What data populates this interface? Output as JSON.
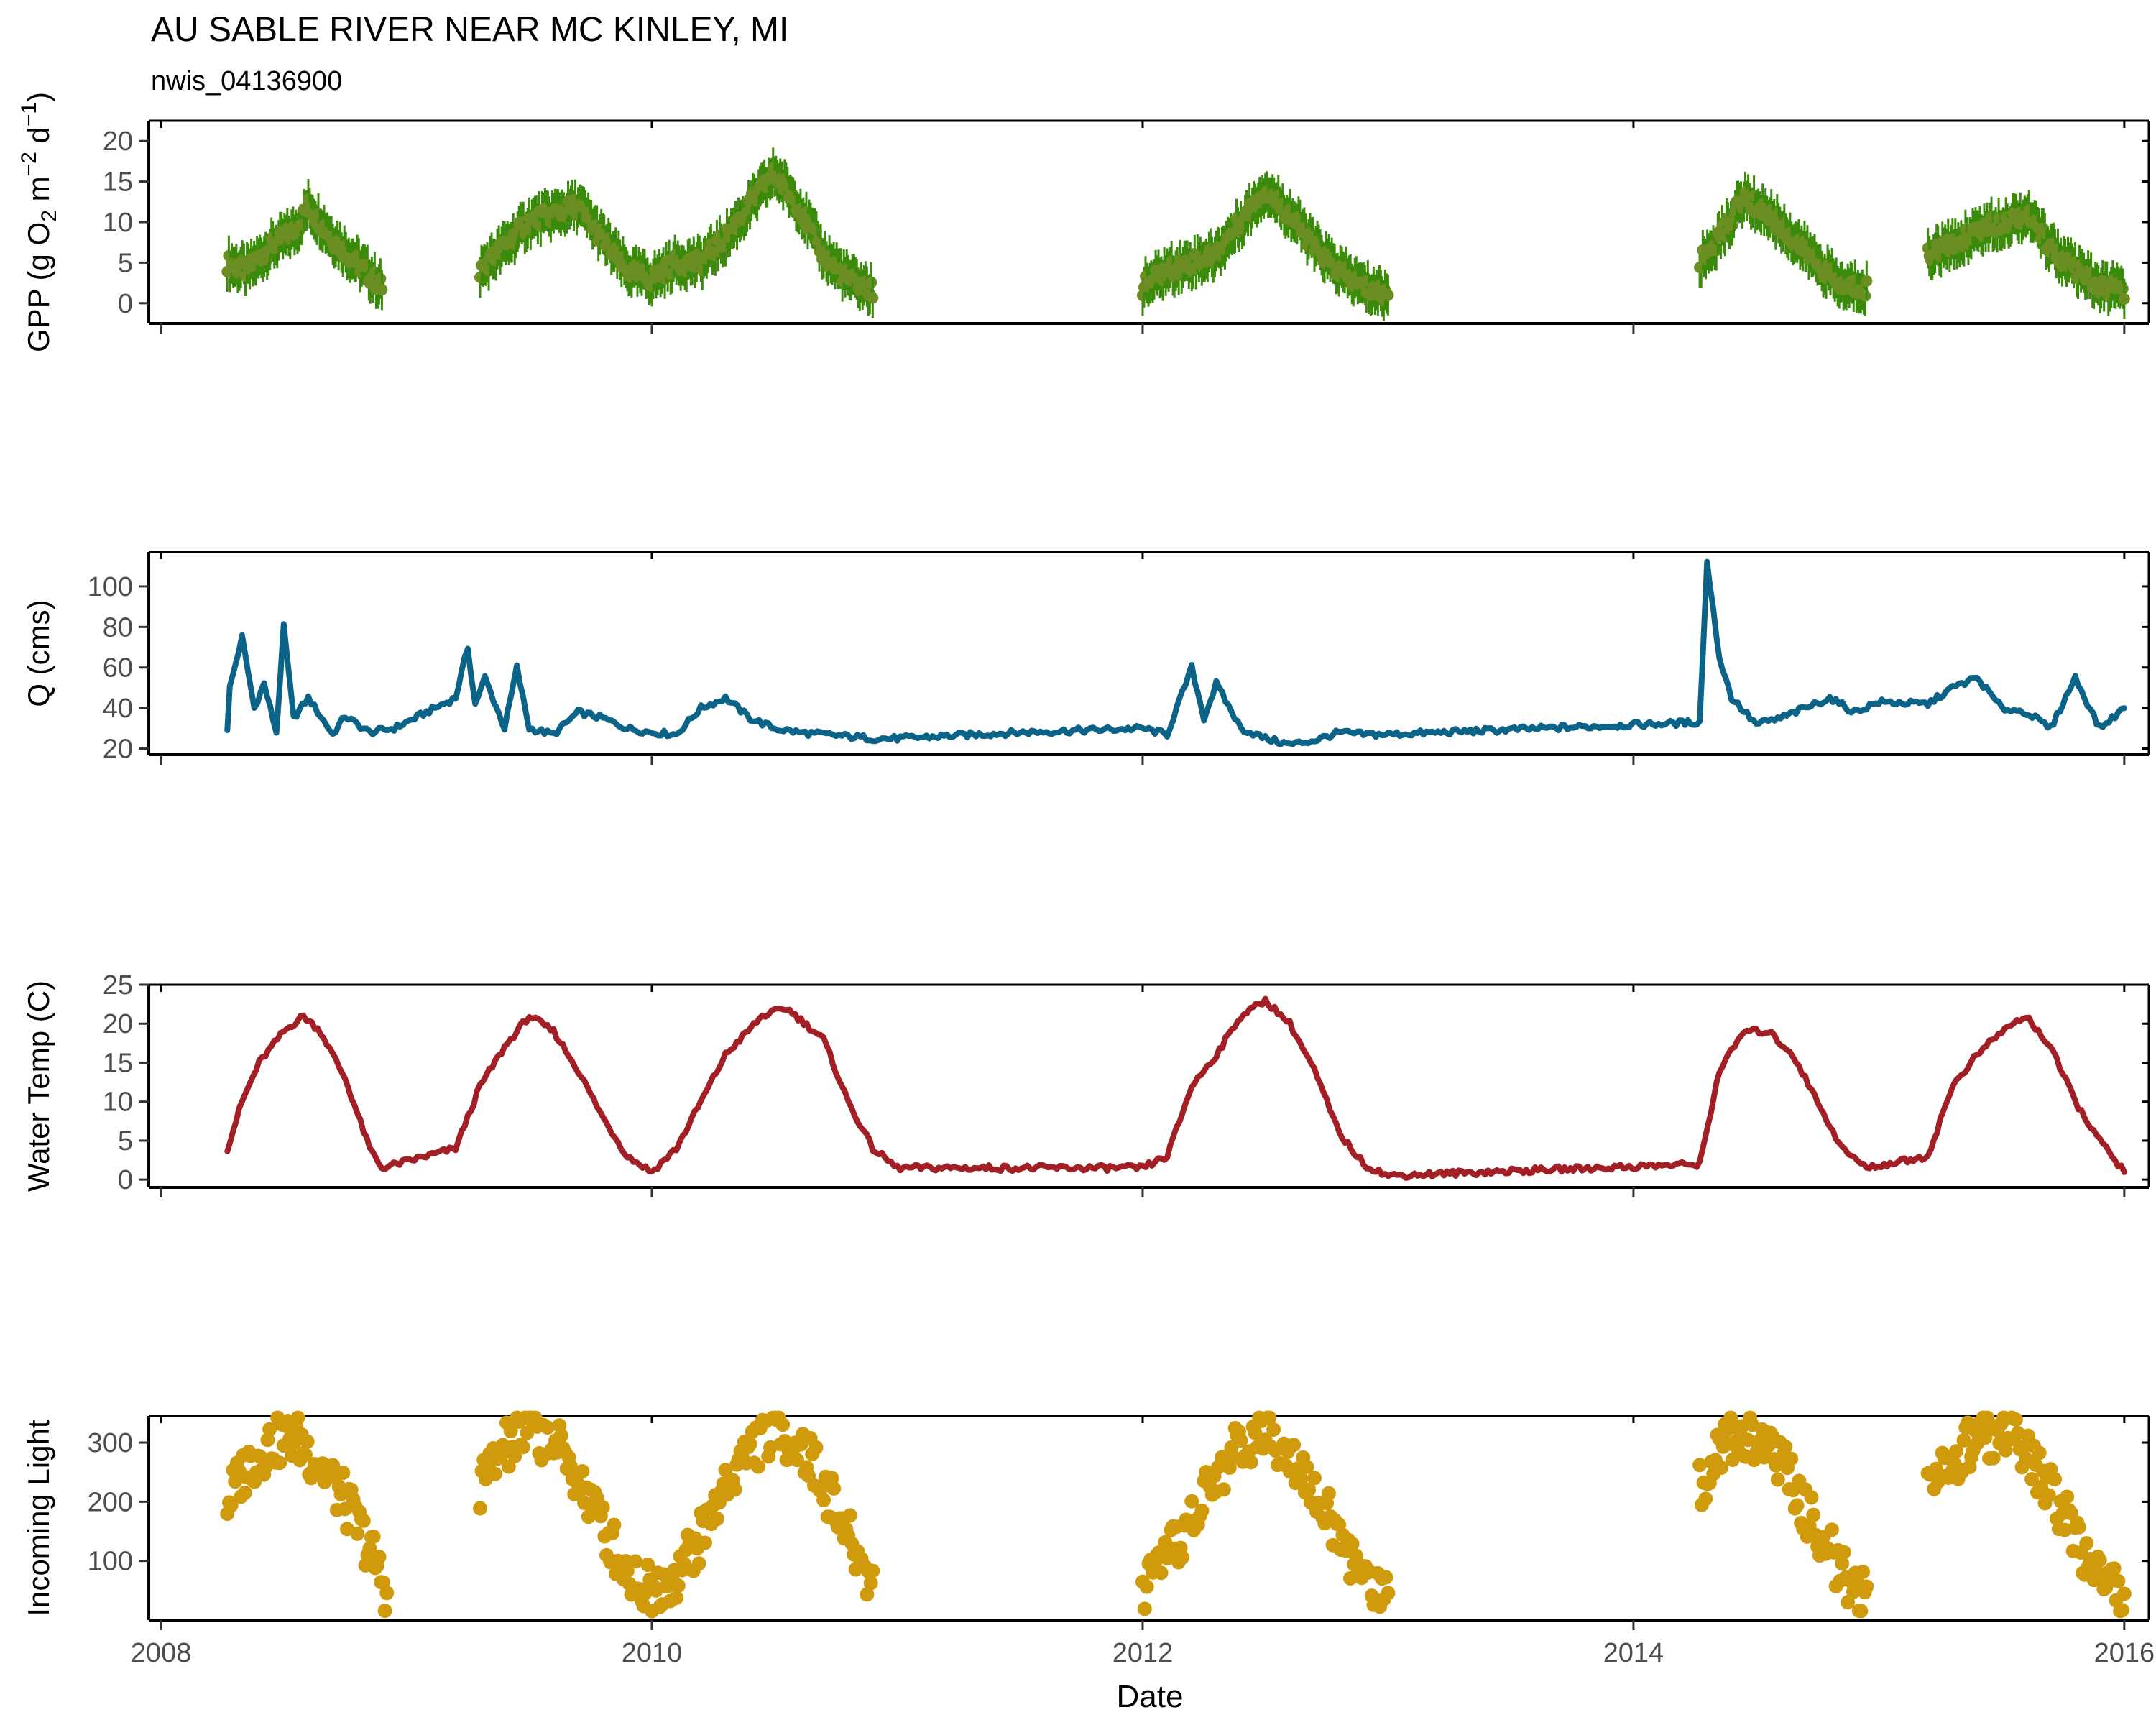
{
  "title": "AU SABLE RIVER NEAR MC KINLEY, MI",
  "subtitle": "nwis_04136900",
  "colors": {
    "gpp": "#6B8E23",
    "gpp_err": "#3B8B0A",
    "q": "#0B6388",
    "temp": "#A21F25",
    "light": "#CF9A0C"
  },
  "chart_data": [
    {
      "type": "scatter",
      "ylabel": "GPP (g  O2 m-2 d-1)",
      "ylabel_parts": {
        "prefix": "GPP (g  O",
        "sub": "2",
        "mid1": " m",
        "sup1": "−2",
        "mid2": " d",
        "sup2": "−1",
        "suffix": ")"
      },
      "xlim": [
        2007.95,
        2016.1
      ],
      "ylim": [
        -2.5,
        22.5
      ],
      "yticks": [
        0,
        5,
        10,
        15,
        20
      ],
      "ytick_labels": [
        "0",
        "5",
        "10",
        "15",
        "20"
      ],
      "grid": false,
      "error_bars": true,
      "segments": [
        {
          "x": [
            2008.27,
            2008.35,
            2008.45,
            2008.55,
            2008.6,
            2008.7,
            2008.8,
            2008.9
          ],
          "y": [
            5,
            4,
            7,
            9,
            12,
            8,
            5,
            2
          ]
        },
        {
          "x": [
            2009.3,
            2009.4,
            2009.5,
            2009.6,
            2009.7,
            2009.8,
            2009.9,
            2010.0,
            2010.1,
            2010.2,
            2010.3,
            2010.4,
            2010.5,
            2010.6,
            2010.7,
            2010.8,
            2010.9
          ],
          "y": [
            4,
            7,
            10,
            11,
            12,
            8,
            4,
            3,
            5,
            5,
            8,
            12,
            16,
            12,
            6,
            3,
            1.5
          ]
        },
        {
          "x": [
            2012.0,
            2012.1,
            2012.2,
            2012.3,
            2012.4,
            2012.5,
            2012.6,
            2012.7,
            2012.8,
            2012.9,
            2013.0
          ],
          "y": [
            2,
            4,
            5,
            6,
            10,
            14,
            11,
            7,
            4,
            2,
            1
          ]
        },
        {
          "x": [
            2014.27,
            2014.35,
            2014.45,
            2014.55,
            2014.65,
            2014.75,
            2014.85,
            2014.95
          ],
          "y": [
            5,
            8,
            13,
            11,
            8,
            5,
            2,
            2
          ]
        },
        {
          "x": [
            2015.2,
            2015.3,
            2015.4,
            2015.5,
            2015.6,
            2015.7,
            2015.8,
            2015.9,
            2016.0
          ],
          "y": [
            6,
            7,
            9,
            10,
            11,
            7,
            4,
            2,
            1.5
          ]
        }
      ]
    },
    {
      "type": "line",
      "ylabel": "Q (cms)",
      "xlim": [
        2007.95,
        2016.1
      ],
      "ylim": [
        17,
        117
      ],
      "yticks": [
        20,
        40,
        60,
        80,
        100
      ],
      "ytick_labels": [
        "20",
        "40",
        "60",
        "80",
        "100"
      ],
      "grid": false,
      "x": [
        2008.27,
        2008.28,
        2008.33,
        2008.38,
        2008.42,
        2008.47,
        2008.5,
        2008.54,
        2008.6,
        2008.7,
        2008.75,
        2008.85,
        2008.95,
        2009.2,
        2009.25,
        2009.28,
        2009.32,
        2009.4,
        2009.45,
        2009.5,
        2009.6,
        2009.7,
        2009.8,
        2009.9,
        2010.0,
        2010.1,
        2010.2,
        2010.3,
        2010.4,
        2010.5,
        2010.6,
        2010.7,
        2010.8,
        2010.9,
        2011.0,
        2011.5,
        2012.0,
        2012.1,
        2012.2,
        2012.25,
        2012.3,
        2012.4,
        2012.5,
        2012.6,
        2012.7,
        2012.8,
        2012.9,
        2013.0,
        2014.27,
        2014.3,
        2014.35,
        2014.4,
        2014.5,
        2014.6,
        2014.7,
        2014.8,
        2014.9,
        2015.0,
        2015.2,
        2015.3,
        2015.4,
        2015.5,
        2015.6,
        2015.7,
        2015.8,
        2015.9,
        2016.0
      ],
      "y": [
        30,
        50,
        75,
        40,
        52,
        28,
        80,
        35,
        45,
        27,
        36,
        28,
        30,
        45,
        70,
        42,
        55,
        30,
        60,
        30,
        27,
        38,
        35,
        30,
        28,
        27,
        40,
        45,
        35,
        30,
        28,
        27,
        26,
        25,
        25,
        28,
        30,
        27,
        60,
        35,
        52,
        30,
        25,
        22,
        24,
        28,
        27,
        27,
        33,
        112,
        65,
        45,
        32,
        35,
        40,
        45,
        38,
        43,
        42,
        50,
        55,
        40,
        38,
        30,
        55,
        30,
        40
      ]
    },
    {
      "type": "line",
      "ylabel": "Water Temp (C)",
      "xlim": [
        2007.95,
        2016.1
      ],
      "ylim": [
        -1,
        25
      ],
      "yticks": [
        0,
        5,
        10,
        15,
        20,
        25
      ],
      "ytick_labels": [
        "0",
        "5",
        "10",
        "15",
        "20",
        "25"
      ],
      "grid": false,
      "x": [
        2008.27,
        2008.33,
        2008.4,
        2008.5,
        2008.58,
        2008.65,
        2008.75,
        2008.85,
        2008.9,
        2009.2,
        2009.3,
        2009.4,
        2009.5,
        2009.6,
        2009.7,
        2009.8,
        2009.9,
        2010.0,
        2010.1,
        2010.2,
        2010.3,
        2010.45,
        2010.55,
        2010.7,
        2010.8,
        2010.9,
        2011.0,
        2012.0,
        2012.1,
        2012.2,
        2012.3,
        2012.4,
        2012.5,
        2012.6,
        2012.7,
        2012.8,
        2012.9,
        2013.0,
        2014.27,
        2014.35,
        2014.45,
        2014.55,
        2014.65,
        2014.75,
        2014.85,
        2014.95,
        2015.2,
        2015.3,
        2015.4,
        2015.5,
        2015.6,
        2015.7,
        2015.8,
        2015.9,
        2016.0
      ],
      "y": [
        4,
        10,
        15,
        19,
        21,
        19,
        13,
        4,
        1.5,
        4,
        12,
        17,
        21,
        19,
        14,
        8,
        3,
        1,
        4,
        10,
        16,
        21,
        22,
        18,
        10,
        4,
        1.5,
        1.5,
        3,
        12,
        16,
        21,
        23,
        20,
        14,
        6,
        2,
        0.5,
        2,
        14,
        19,
        19,
        16,
        10,
        4,
        1.5,
        3,
        12,
        16,
        19,
        21,
        17,
        10,
        5,
        1
      ]
    },
    {
      "type": "scatter",
      "ylabel": "Incoming Light",
      "xlabel": "Date",
      "xlim": [
        2007.95,
        2016.1
      ],
      "ylim": [
        0,
        345
      ],
      "yticks": [
        100,
        200,
        300
      ],
      "ytick_labels": [
        "100",
        "200",
        "300"
      ],
      "xticks": [
        2008,
        2010,
        2012,
        2014,
        2016
      ],
      "xtick_labels": [
        "2008",
        "2010",
        "2012",
        "2014",
        "2016"
      ],
      "grid": false,
      "segments": [
        {
          "x": [
            2008.27,
            2008.35,
            2008.45,
            2008.55,
            2008.65,
            2008.75,
            2008.85,
            2008.92
          ],
          "y": [
            200,
            260,
            300,
            310,
            260,
            200,
            120,
            50
          ]
        },
        {
          "x": [
            2009.3,
            2009.4,
            2009.5,
            2009.6,
            2009.7,
            2009.8,
            2009.9,
            2010.0,
            2010.1,
            2010.2,
            2010.3,
            2010.4,
            2010.5,
            2010.6,
            2010.7,
            2010.8,
            2010.9
          ],
          "y": [
            230,
            290,
            320,
            300,
            240,
            160,
            80,
            50,
            80,
            140,
            230,
            290,
            320,
            300,
            230,
            140,
            60
          ]
        },
        {
          "x": [
            2012.0,
            2012.1,
            2012.2,
            2012.3,
            2012.4,
            2012.5,
            2012.6,
            2012.7,
            2012.8,
            2012.9,
            2013.0
          ],
          "y": [
            40,
            100,
            170,
            240,
            300,
            320,
            290,
            220,
            140,
            70,
            40
          ]
        },
        {
          "x": [
            2014.27,
            2014.35,
            2014.45,
            2014.55,
            2014.65,
            2014.75,
            2014.85,
            2014.95
          ],
          "y": [
            230,
            290,
            320,
            300,
            230,
            150,
            80,
            40
          ]
        },
        {
          "x": [
            2015.2,
            2015.3,
            2015.4,
            2015.5,
            2015.6,
            2015.7,
            2015.8,
            2015.9,
            2016.0
          ],
          "y": [
            220,
            270,
            310,
            320,
            290,
            220,
            140,
            70,
            40
          ]
        }
      ]
    }
  ]
}
